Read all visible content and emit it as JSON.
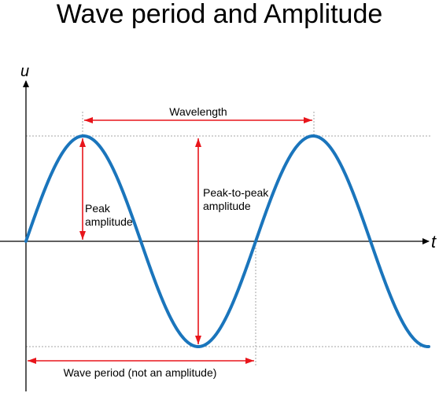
{
  "title": "Wave period and Amplitude",
  "axes": {
    "vertical_label": "u",
    "horizontal_label": "t"
  },
  "annotations": {
    "wavelength": "Wavelength",
    "peak_amplitude_line1": "Peak",
    "peak_amplitude_line2": "amplitude",
    "peak_to_peak_line1": "Peak-to-peak",
    "peak_to_peak_line2": "amplitude",
    "wave_period": "Wave period (not an amplitude)"
  },
  "colors": {
    "wave": "#1a75bc",
    "arrows": "#e8151b",
    "axes": "#000000",
    "guides": "#a6a6a6"
  }
}
